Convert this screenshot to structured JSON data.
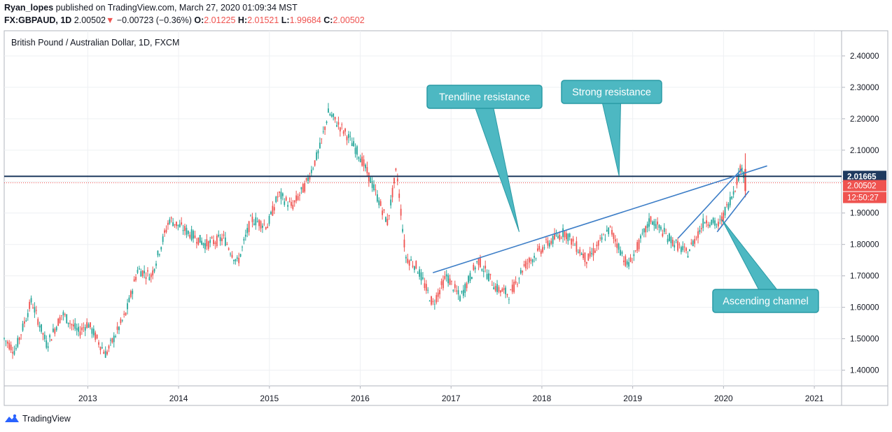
{
  "header": {
    "user": "Ryan_lopes",
    "published": "published on TradingView.com, March 27, 2020 01:09:34 MST",
    "symbol": "FX:GBPAUD, 1D",
    "last": "2.00502",
    "change_arrow": "▼",
    "change": "−0.00723 (−0.36%)",
    "o_label": "O:",
    "o_value": "2.01225",
    "h_label": "H:",
    "h_value": "2.01521",
    "l_label": "L:",
    "l_value": "1.99684",
    "c_label": "C:",
    "c_value": "2.00502"
  },
  "footer": {
    "brand": "TradingView"
  },
  "chart_data": {
    "type": "candlestick",
    "title": "British Pound / Australian Dollar, 1D, FXCM",
    "xlabel": "",
    "ylabel": "",
    "grid": true,
    "ylim": [
      1.35,
      2.48
    ],
    "xlim": [
      2012.08,
      2021.3
    ],
    "x_ticks": [
      "2013",
      "2014",
      "2015",
      "2016",
      "2017",
      "2018",
      "2019",
      "2020",
      "2021"
    ],
    "y_ticks": [
      "1.40000",
      "1.50000",
      "1.60000",
      "1.70000",
      "1.80000",
      "1.90000",
      "2.00000",
      "2.10000",
      "2.20000",
      "2.30000",
      "2.40000"
    ],
    "price_path": [
      [
        2012.08,
        1.5
      ],
      [
        2012.2,
        1.46
      ],
      [
        2012.38,
        1.62
      ],
      [
        2012.55,
        1.48
      ],
      [
        2012.72,
        1.58
      ],
      [
        2012.9,
        1.52
      ],
      [
        2013.0,
        1.55
      ],
      [
        2013.2,
        1.45
      ],
      [
        2013.42,
        1.58
      ],
      [
        2013.55,
        1.72
      ],
      [
        2013.7,
        1.7
      ],
      [
        2013.9,
        1.88
      ],
      [
        2014.1,
        1.84
      ],
      [
        2014.3,
        1.8
      ],
      [
        2014.5,
        1.82
      ],
      [
        2014.65,
        1.74
      ],
      [
        2014.8,
        1.88
      ],
      [
        2014.98,
        1.86
      ],
      [
        2015.1,
        1.96
      ],
      [
        2015.25,
        1.92
      ],
      [
        2015.4,
        1.99
      ],
      [
        2015.55,
        2.1
      ],
      [
        2015.65,
        2.22
      ],
      [
        2015.85,
        2.15
      ],
      [
        2016.0,
        2.08
      ],
      [
        2016.12,
        2.0
      ],
      [
        2016.3,
        1.87
      ],
      [
        2016.4,
        2.04
      ],
      [
        2016.5,
        1.76
      ],
      [
        2016.62,
        1.73
      ],
      [
        2016.8,
        1.61
      ],
      [
        2016.95,
        1.7
      ],
      [
        2017.1,
        1.63
      ],
      [
        2017.3,
        1.75
      ],
      [
        2017.5,
        1.66
      ],
      [
        2017.65,
        1.64
      ],
      [
        2017.8,
        1.73
      ],
      [
        2018.05,
        1.8
      ],
      [
        2018.25,
        1.84
      ],
      [
        2018.5,
        1.75
      ],
      [
        2018.75,
        1.85
      ],
      [
        2018.95,
        1.73
      ],
      [
        2019.2,
        1.88
      ],
      [
        2019.4,
        1.82
      ],
      [
        2019.6,
        1.77
      ],
      [
        2019.8,
        1.88
      ],
      [
        2019.95,
        1.86
      ],
      [
        2020.1,
        1.96
      ],
      [
        2020.2,
        2.05
      ],
      [
        2020.24,
        2.0
      ]
    ],
    "price_lines": [
      {
        "label": "2.01665",
        "value": 2.01665,
        "color": "#1e3a5f",
        "style": "solid"
      },
      {
        "label": "2.00502",
        "value": 2.00502,
        "color": "#ef5350",
        "style": "dotted"
      }
    ],
    "countdown_label": "12:50:27",
    "trendlines": [
      {
        "from": [
          2016.8,
          1.71
        ],
        "to": [
          2020.48,
          2.05
        ]
      },
      {
        "from": [
          2019.5,
          1.82
        ],
        "to": [
          2020.2,
          2.04
        ]
      },
      {
        "from": [
          2019.93,
          1.84
        ],
        "to": [
          2020.28,
          1.97
        ]
      }
    ],
    "annotations": [
      {
        "text": "Trendline resistance",
        "target": [
          2017.75,
          1.84
        ]
      },
      {
        "text": "Strong resistance",
        "target": [
          2018.85,
          2.018
        ]
      },
      {
        "text": "Ascending channel",
        "target": [
          2019.98,
          1.88
        ]
      }
    ],
    "colors": {
      "up": "#26a69a",
      "down": "#ef5350",
      "annotation": "#4db8c2",
      "annotation_border": "#2a9aa5",
      "trendline": "#3d7ec7"
    }
  }
}
